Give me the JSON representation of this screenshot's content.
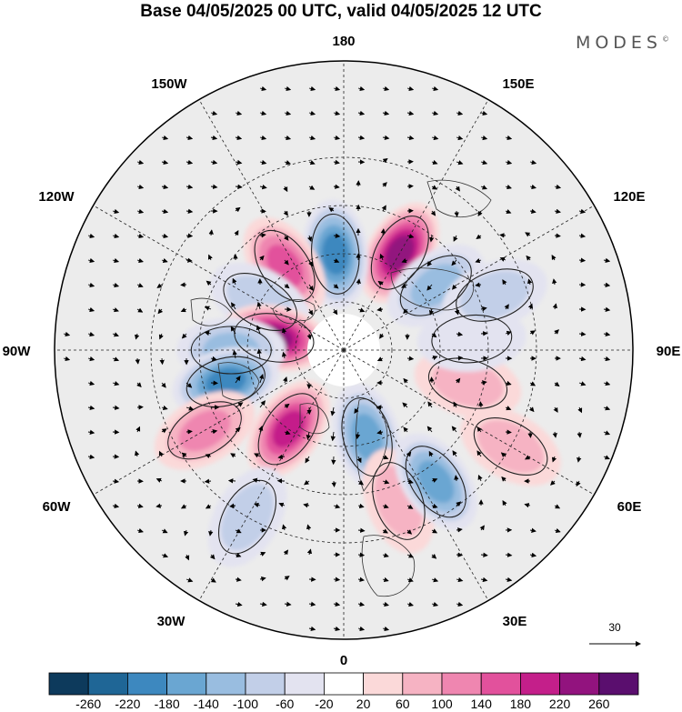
{
  "header": {
    "title": "Base 04/05/2025 00 UTC, valid 04/05/2025 12 UTC",
    "brand": "MODES",
    "brand_mark": "©"
  },
  "map": {
    "projection": "north-polar-stereographic",
    "longitude_labels": {
      "lon_180": "180",
      "lon_150E": "150E",
      "lon_120E": "120E",
      "lon_90E": "90E",
      "lon_60E": "60E",
      "lon_30E": "30E",
      "lon_0": "0",
      "lon_30W": "30W",
      "lon_60W": "60W",
      "lon_90W": "90W",
      "lon_120W": "120W",
      "lon_150W": "150W"
    },
    "graticule": "dashed",
    "reference_vector": "30"
  },
  "colorbar": {
    "ticks": [
      "-260",
      "-220",
      "-180",
      "-140",
      "-100",
      "-60",
      "-20",
      "20",
      "60",
      "100",
      "140",
      "180",
      "220",
      "260"
    ],
    "colors": [
      "#0d3a5c",
      "#1f6696",
      "#3d88bf",
      "#6aa6d2",
      "#99bde0",
      "#c2cfe8",
      "#e3e3f0",
      "#ffffff",
      "#fbd9d9",
      "#f6b3c3",
      "#ef86b0",
      "#e2519c",
      "#c41f8a",
      "#92137e",
      "#5a0e6e"
    ]
  },
  "anomaly_centers": [
    {
      "lon": 150,
      "lat": 55,
      "value": 220
    },
    {
      "lon": -175,
      "lat": 60,
      "value": -180
    },
    {
      "lon": -145,
      "lat": 58,
      "value": 160
    },
    {
      "lon": -120,
      "lat": 60,
      "value": -60
    },
    {
      "lon": -100,
      "lat": 68,
      "value": 220
    },
    {
      "lon": -90,
      "lat": 55,
      "value": -120
    },
    {
      "lon": -75,
      "lat": 52,
      "value": -180
    },
    {
      "lon": -60,
      "lat": 40,
      "value": 120
    },
    {
      "lon": -35,
      "lat": 60,
      "value": 200
    },
    {
      "lon": -30,
      "lat": 30,
      "value": -80
    },
    {
      "lon": 15,
      "lat": 62,
      "value": -160
    },
    {
      "lon": 20,
      "lat": 40,
      "value": 80
    },
    {
      "lon": 35,
      "lat": 40,
      "value": -140
    },
    {
      "lon": 60,
      "lat": 30,
      "value": 80
    },
    {
      "lon": 75,
      "lat": 50,
      "value": 80
    },
    {
      "lon": 95,
      "lat": 50,
      "value": -40
    },
    {
      "lon": 125,
      "lat": 55,
      "value": -100
    },
    {
      "lon": 110,
      "lat": 40,
      "value": -60
    }
  ]
}
